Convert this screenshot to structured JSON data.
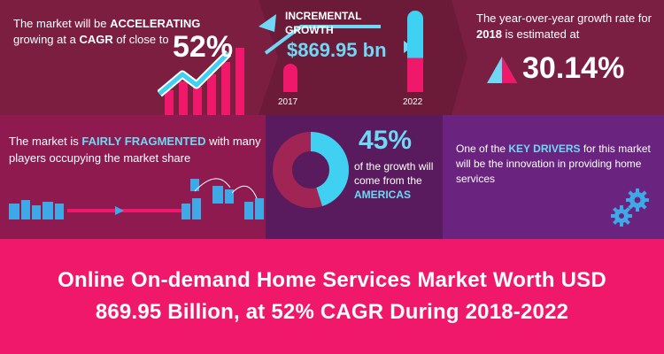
{
  "cagr": {
    "pre": "The market will be ",
    "accent1": "ACCELERATING",
    "mid": "growing at a ",
    "accent2": "CAGR",
    "post": " of close to",
    "value": "52%"
  },
  "incremental": {
    "title_line1": "INCREMENTAL",
    "title_line2": "GROWTH",
    "value": "$869.95 bn",
    "year_start": "2017",
    "year_end": "2022"
  },
  "yoy": {
    "pre": "The year-over-year growth rate for ",
    "year": "2018",
    "post": " is estimated at",
    "value": "30.14%"
  },
  "fragmented": {
    "pre": "The market is ",
    "accent": "FAIRLY FRAGMENTED",
    "post": " with many players occupying the market share"
  },
  "americas": {
    "value": "45%",
    "text": "of the growth will come from the",
    "accent": "AMERICAS",
    "share_fraction": 0.45
  },
  "drivers": {
    "pre": "One of the ",
    "accent": "KEY DRIVERS",
    "post": " for this market will be the innovation in providing home services"
  },
  "headline": {
    "line1": "Online On-demand Home Services Market Worth USD",
    "line2": "869.95 Billion, at 52% CAGR During 2018-2022"
  },
  "colors": {
    "pink": "#f0186a",
    "cyan": "#3fd0f2",
    "maroon": "#7c1e40",
    "purple": "#6a2480"
  },
  "icons": [
    "trend-arrow-icon",
    "building-icon",
    "gear-icon",
    "triangle-up-icon",
    "play-icon"
  ]
}
